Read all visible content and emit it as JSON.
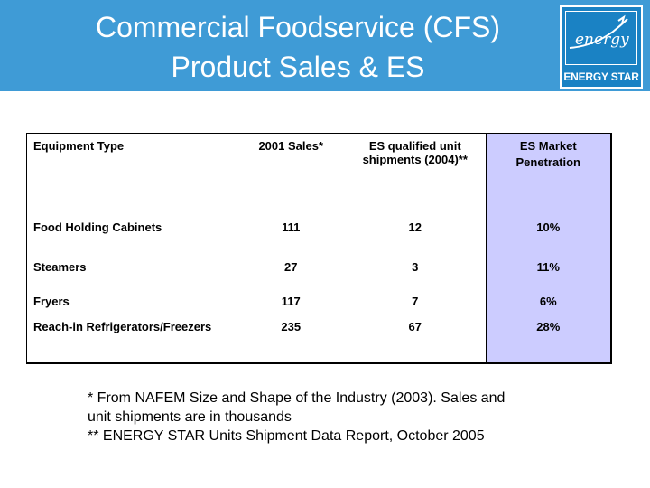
{
  "slide": {
    "title_line1": "Commercial Foodservice (CFS)",
    "title_line2": "Product Sales & ES",
    "logo_text": "ENERGY STAR",
    "colors": {
      "header": "#3f9bd6",
      "logo_bg": "#1a82c4",
      "highlight_column": "#ccccff"
    }
  },
  "table": {
    "headers": {
      "equipment": "Equipment Type",
      "sales": "2001 Sales*",
      "shipments": "ES qualified unit shipments (2004)**",
      "penetration_line1": "ES Market",
      "penetration_line2": "Penetration"
    },
    "rows": [
      {
        "equipment": "Food Holding Cabinets",
        "sales": "111",
        "shipments": "12",
        "penetration": "10%"
      },
      {
        "equipment": "Steamers",
        "sales": "27",
        "shipments": "3",
        "penetration": "11%"
      },
      {
        "equipment": "Fryers",
        "sales": "117",
        "shipments": "7",
        "penetration": "6%"
      },
      {
        "equipment": "Reach-in Refrigerators/Freezers",
        "sales": "235",
        "shipments": "67",
        "penetration": "28%"
      }
    ]
  },
  "footnotes": {
    "line1": "* From NAFEM Size and Shape of the Industry (2003). Sales and",
    "line2": "unit shipments are in thousands",
    "line3": "** ENERGY STAR Units Shipment Data Report, October 2005"
  }
}
